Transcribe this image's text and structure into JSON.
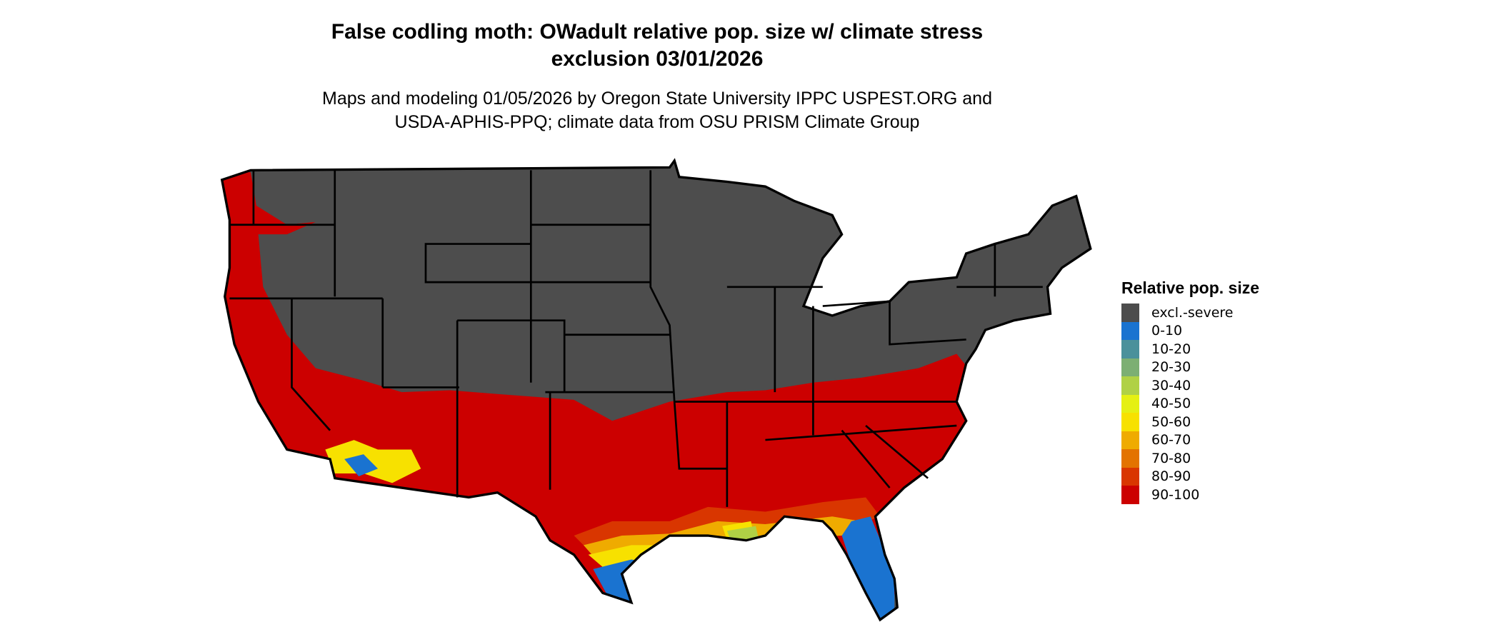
{
  "title": {
    "line1": "False codling moth: OWadult relative pop. size w/ climate stress",
    "line2": "exclusion 03/01/2026"
  },
  "subtitle": {
    "line1": "Maps and modeling 01/05/2026 by Oregon State University IPPC USPEST.ORG and",
    "line2": "USDA-APHIS-PPQ; climate data from OSU PRISM Climate Group"
  },
  "legend": {
    "title": "Relative pop. size",
    "items": [
      {
        "label": "excl.-severe",
        "color": "#4d4d4d"
      },
      {
        "label": "0-10",
        "color": "#1a73d0"
      },
      {
        "label": "10-20",
        "color": "#4a919b"
      },
      {
        "label": "20-30",
        "color": "#7caf73"
      },
      {
        "label": "30-40",
        "color": "#b0d145"
      },
      {
        "label": "40-50",
        "color": "#e5f013"
      },
      {
        "label": "50-60",
        "color": "#f7e100"
      },
      {
        "label": "60-70",
        "color": "#efab00"
      },
      {
        "label": "70-80",
        "color": "#e37300"
      },
      {
        "label": "80-90",
        "color": "#d93600"
      },
      {
        "label": "90-100",
        "color": "#cc0000"
      }
    ]
  },
  "map": {
    "region": "Contiguous United States",
    "dominant_categories": {
      "north_interior": "excl.-severe",
      "south_and_pacific_coast": "90-100",
      "florida_peninsula": "0-10",
      "south_texas_coast": "0-10"
    }
  }
}
